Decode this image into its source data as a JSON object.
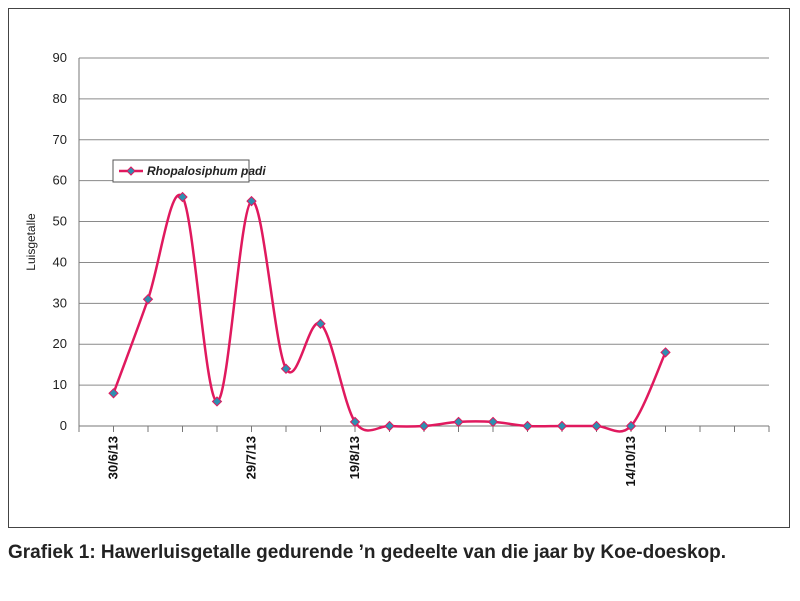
{
  "caption": "Grafiek 1: Hawerluisgetalle gedurende ’n gedeelte van die jaar by Koe-doeskop.",
  "chart_data": {
    "type": "line",
    "title": "",
    "xlabel": "",
    "ylabel": "Luisgetalle",
    "ylim": [
      0,
      90
    ],
    "yticks": [
      0,
      10,
      20,
      30,
      40,
      50,
      60,
      70,
      80,
      90
    ],
    "grid": true,
    "legend_position": "top-left",
    "x_labels": [
      {
        "index": 0,
        "label": "30/6/13"
      },
      {
        "index": 4,
        "label": "29/7/13"
      },
      {
        "index": 7,
        "label": "19/8/13"
      },
      {
        "index": 15,
        "label": "14/10/13"
      }
    ],
    "series": [
      {
        "name": "Rhopalosiphum padi",
        "color": "#e0195e",
        "marker_color": "#2e8fb0",
        "values": [
          8,
          31,
          56,
          6,
          55,
          14,
          25,
          1,
          0,
          0,
          1,
          1,
          0,
          0,
          0,
          0,
          18
        ]
      }
    ]
  }
}
